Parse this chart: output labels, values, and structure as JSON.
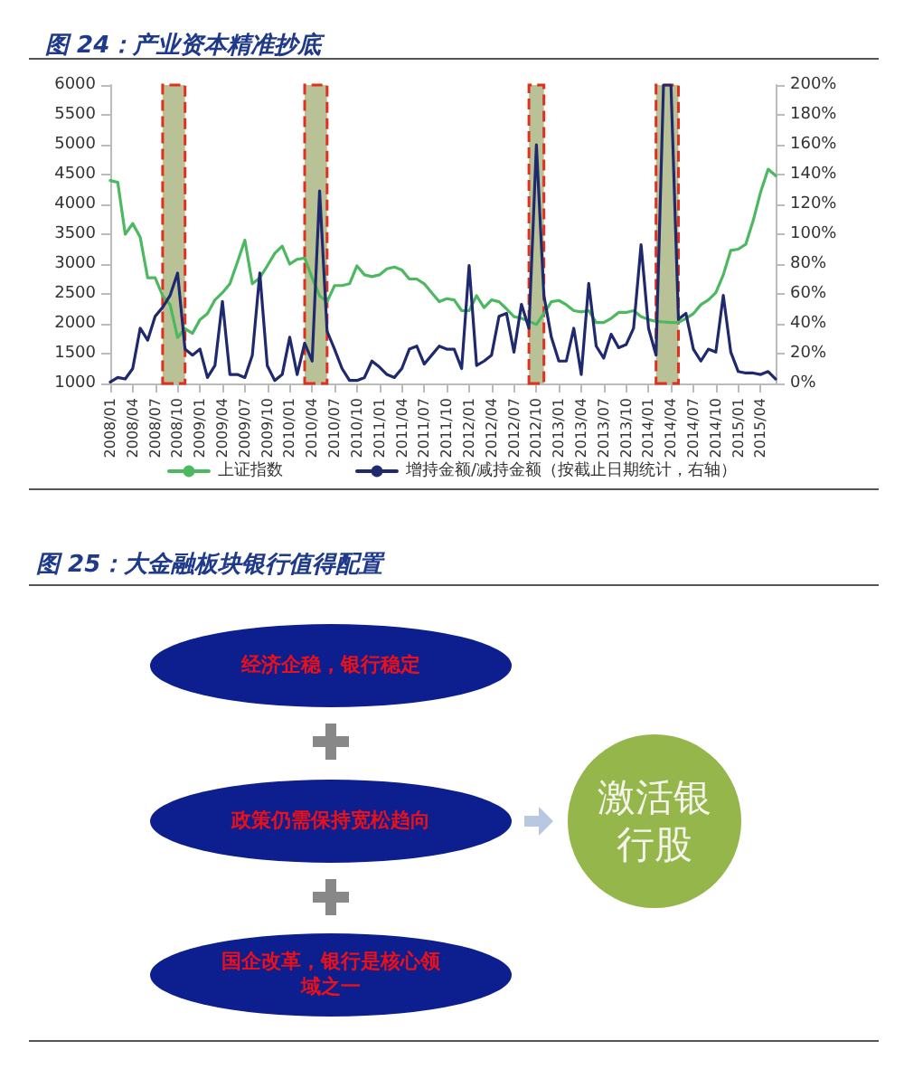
{
  "chart_data": [
    {
      "type": "line",
      "title": "图 24：产业资本精准抄底",
      "x": [
        "2008-01",
        "2008-02",
        "2008-03",
        "2008-04",
        "2008-05",
        "2008-06",
        "2008-07",
        "2008-08",
        "2008-09",
        "2008-10",
        "2008-11",
        "2008-12",
        "2009-01",
        "2009-02",
        "2009-03",
        "2009-04",
        "2009-05",
        "2009-06",
        "2009-07",
        "2009-08",
        "2009-09",
        "2009-10",
        "2009-11",
        "2009-12",
        "2010-01",
        "2010-02",
        "2010-03",
        "2010-04",
        "2010-05",
        "2010-06",
        "2010-07",
        "2010-08",
        "2010-09",
        "2010-10",
        "2010-11",
        "2010-12",
        "2011-01",
        "2011-02",
        "2011-03",
        "2011-04",
        "2011-05",
        "2011-06",
        "2011-07",
        "2011-08",
        "2011-09",
        "2011-10",
        "2011-11",
        "2011-12",
        "2012-01",
        "2012-02",
        "2012-03",
        "2012-04",
        "2012-05",
        "2012-06",
        "2012-07",
        "2012-08",
        "2012-09",
        "2012-10",
        "2012-11",
        "2012-12",
        "2013-01",
        "2013-02",
        "2013-03",
        "2013-04",
        "2013-05",
        "2013-06",
        "2013-07",
        "2013-08",
        "2013-09",
        "2013-10",
        "2013-11",
        "2013-12",
        "2014-01",
        "2014-02",
        "2014-03",
        "2014-04",
        "2014-05",
        "2014-06",
        "2014-07",
        "2014-08",
        "2014-09",
        "2014-10",
        "2014-11",
        "2014-12",
        "2015-01",
        "2015-02",
        "2015-03",
        "2015-04",
        "2015-05",
        "2015-06"
      ],
      "series": [
        {
          "name": "上证指数",
          "color": "#4cb860",
          "values": [
            4400,
            4370,
            3500,
            3680,
            3450,
            2770,
            2770,
            2470,
            2320,
            1770,
            1920,
            1840,
            2070,
            2170,
            2400,
            2520,
            2670,
            3030,
            3400,
            2670,
            2770,
            2970,
            3180,
            3300,
            3000,
            3080,
            3100,
            2770,
            2470,
            2370,
            2640,
            2640,
            2670,
            2970,
            2820,
            2790,
            2820,
            2920,
            2950,
            2900,
            2750,
            2750,
            2670,
            2520,
            2370,
            2420,
            2400,
            2220,
            2220,
            2470,
            2270,
            2400,
            2370,
            2250,
            2120,
            2090,
            2040,
            1990,
            2170,
            2370,
            2390,
            2320,
            2220,
            2200,
            2220,
            2020,
            2020,
            2090,
            2190,
            2190,
            2220,
            2120,
            2070,
            2040,
            2030,
            2020,
            2020,
            2090,
            2170,
            2320,
            2400,
            2520,
            2820,
            3230,
            3250,
            3330,
            3730,
            4210,
            4590,
            4480
          ]
        },
        {
          "name": "增持金额/减持金额（按截止日期统计，右轴）",
          "color": "#1f2a6e",
          "axis": "y2",
          "values": [
            1,
            4,
            3,
            10,
            37,
            29,
            45,
            51,
            59,
            74,
            23,
            19,
            23,
            4,
            12,
            55,
            6,
            6,
            4,
            19,
            74,
            12,
            2,
            6,
            31,
            6,
            27,
            15,
            129,
            35,
            23,
            10,
            2,
            2,
            4,
            15,
            11,
            6,
            4,
            10,
            23,
            25,
            13,
            19,
            25,
            23,
            23,
            10,
            79,
            12,
            15,
            19,
            45,
            47,
            21,
            53,
            37,
            160,
            59,
            31,
            15,
            15,
            37,
            6,
            67,
            25,
            17,
            33,
            24,
            26,
            37,
            93,
            37,
            19,
            200,
            200,
            43,
            47,
            23,
            15,
            23,
            21,
            59,
            21,
            8,
            7,
            7,
            6,
            8,
            3
          ]
        }
      ],
      "xlim": [
        "2008-01",
        "2015-06"
      ],
      "xticks": [
        {
          "value": "2008-01",
          "label": "2008/01"
        },
        {
          "value": "2008-04",
          "label": "2008/04"
        },
        {
          "value": "2008-07",
          "label": "2008/07"
        },
        {
          "value": "2008-10",
          "label": "2008/10"
        },
        {
          "value": "2009-01",
          "label": "2009/01"
        },
        {
          "value": "2009-04",
          "label": "2009/04"
        },
        {
          "value": "2009-07",
          "label": "2009/07"
        },
        {
          "value": "2009-10",
          "label": "2009/10"
        },
        {
          "value": "2010-01",
          "label": "2010/01"
        },
        {
          "value": "2010-04",
          "label": "2010/04"
        },
        {
          "value": "2010-07",
          "label": "2010/07"
        },
        {
          "value": "2010-10",
          "label": "2010/10"
        },
        {
          "value": "2011-01",
          "label": "2011/01"
        },
        {
          "value": "2011-04",
          "label": "2011/04"
        },
        {
          "value": "2011-07",
          "label": "2011/07"
        },
        {
          "value": "2011-10",
          "label": "2011/10"
        },
        {
          "value": "2012-01",
          "label": "2012/01"
        },
        {
          "value": "2012-04",
          "label": "2012/04"
        },
        {
          "value": "2012-07",
          "label": "2012/07"
        },
        {
          "value": "2012-10",
          "label": "2012/10"
        },
        {
          "value": "2013-01",
          "label": "2013/01"
        },
        {
          "value": "2013-04",
          "label": "2013/04"
        },
        {
          "value": "2013-07",
          "label": "2013/07"
        },
        {
          "value": "2013-10",
          "label": "2013/10"
        },
        {
          "value": "2014-01",
          "label": "2014/01"
        },
        {
          "value": "2014-04",
          "label": "2014/04"
        },
        {
          "value": "2014-07",
          "label": "2014/07"
        },
        {
          "value": "2014-10",
          "label": "2014/10"
        },
        {
          "value": "2015-01",
          "label": "2015/01"
        },
        {
          "value": "2015-04",
          "label": "2015/04"
        }
      ],
      "ylim": [
        1000,
        6000
      ],
      "yticks": [
        1000,
        1500,
        2000,
        2500,
        3000,
        3500,
        4000,
        4500,
        5000,
        5500,
        6000
      ],
      "y2lim": [
        0,
        200
      ],
      "y2ticks": [
        {
          "value": 0,
          "label": "0%"
        },
        {
          "value": 20,
          "label": "20%"
        },
        {
          "value": 40,
          "label": "40%"
        },
        {
          "value": 60,
          "label": "60%"
        },
        {
          "value": 80,
          "label": "80%"
        },
        {
          "value": 100,
          "label": "100%"
        },
        {
          "value": 120,
          "label": "120%"
        },
        {
          "value": 140,
          "label": "140%"
        },
        {
          "value": 160,
          "label": "160%"
        },
        {
          "value": 180,
          "label": "180%"
        },
        {
          "value": 200,
          "label": "200%"
        }
      ],
      "bands": [
        {
          "axis": "x",
          "from": "2008-08",
          "to": "2008-11",
          "color": "#b9c196"
        },
        {
          "axis": "x",
          "from": "2010-03",
          "to": "2010-06",
          "color": "#b9c196"
        },
        {
          "axis": "x",
          "from": "2012-09",
          "to": "2012-11",
          "color": "#b9c196"
        },
        {
          "axis": "x",
          "from": "2014-02",
          "to": "2014-05",
          "color": "#b9c196"
        }
      ],
      "grid": false,
      "legend": "bottom",
      "marker": "none",
      "line_style": "solid"
    },
    {
      "type": "other",
      "title": "图 25：大金融板块银行值得配置",
      "annotations": [
        "经济企稳，银行稳定",
        "政策仍需保持宽松趋向",
        "国企改革，银行是核心领域之一",
        "激活银行股"
      ]
    }
  ]
}
